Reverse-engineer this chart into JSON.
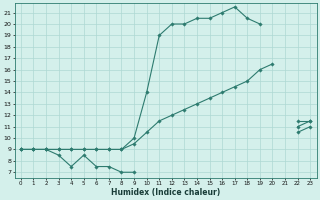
{
  "xlabel": "Humidex (Indice chaleur)",
  "x_values": [
    0,
    1,
    2,
    3,
    4,
    5,
    6,
    7,
    8,
    9,
    10,
    11,
    12,
    13,
    14,
    15,
    16,
    17,
    18,
    19,
    20,
    21,
    22,
    23
  ],
  "line_max": [
    9.0,
    9.0,
    9.0,
    9.0,
    9.0,
    9.0,
    9.0,
    9.0,
    9.0,
    10.0,
    14.0,
    19.0,
    20.0,
    20.0,
    20.5,
    20.5,
    21.0,
    21.5,
    20.5,
    20.0,
    null,
    null,
    11.0,
    11.5
  ],
  "line_avg": [
    9.0,
    9.0,
    9.0,
    9.0,
    9.0,
    9.0,
    9.0,
    9.0,
    9.0,
    9.5,
    10.5,
    11.5,
    12.0,
    12.5,
    13.0,
    13.5,
    14.0,
    14.5,
    15.0,
    16.0,
    16.5,
    null,
    11.5,
    11.5
  ],
  "line_min": [
    9.0,
    9.0,
    9.0,
    8.5,
    7.5,
    8.5,
    7.5,
    7.5,
    7.0,
    7.0,
    null,
    null,
    null,
    null,
    null,
    null,
    null,
    null,
    null,
    null,
    null,
    null,
    10.5,
    11.0
  ],
  "line_color": "#2d7b6f",
  "bg_color": "#d4f0eb",
  "grid_color": "#aed8d3",
  "xlim": [
    -0.5,
    23.5
  ],
  "ylim": [
    6.5,
    21.8
  ],
  "yticks": [
    7,
    8,
    9,
    10,
    11,
    12,
    13,
    14,
    15,
    16,
    17,
    18,
    19,
    20,
    21
  ],
  "xticks": [
    0,
    1,
    2,
    3,
    4,
    5,
    6,
    7,
    8,
    9,
    10,
    11,
    12,
    13,
    14,
    15,
    16,
    17,
    18,
    19,
    20,
    21,
    22,
    23
  ]
}
